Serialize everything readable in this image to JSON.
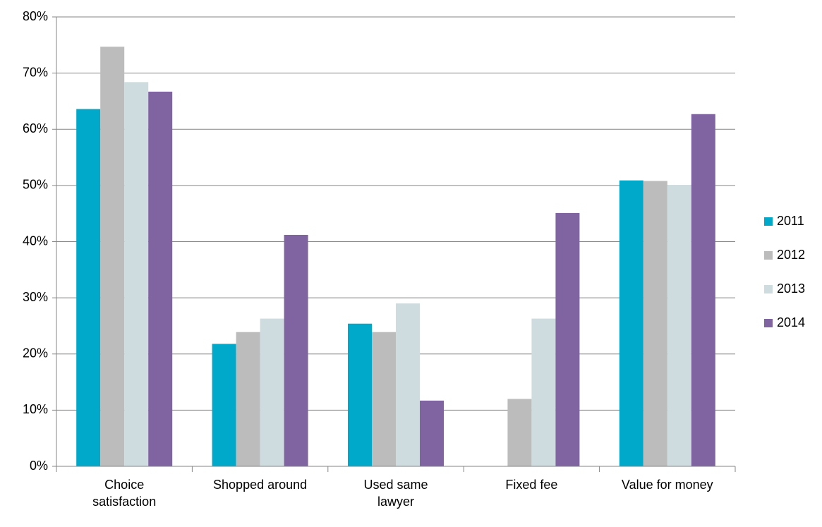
{
  "chart_data": {
    "type": "bar",
    "categories": [
      "Choice satisfaction",
      "Shopped around",
      "Used same lawyer",
      "Fixed fee",
      "Value for money"
    ],
    "series": [
      {
        "name": "2011",
        "color": "#00a9c9",
        "values": [
          63.6,
          21.8,
          25.4,
          null,
          50.9
        ]
      },
      {
        "name": "2012",
        "color": "#bcbcbc",
        "values": [
          74.7,
          23.9,
          23.9,
          12.0,
          50.8
        ]
      },
      {
        "name": "2013",
        "color": "#cfdcdf",
        "values": [
          68.4,
          26.3,
          29.0,
          26.3,
          50.1
        ]
      },
      {
        "name": "2014",
        "color": "#8064a2",
        "values": [
          66.7,
          41.2,
          11.7,
          45.1,
          62.7
        ]
      }
    ],
    "ylim": [
      0,
      80
    ],
    "yticks": [
      {
        "value": 0,
        "label": "0%"
      },
      {
        "value": 10,
        "label": "10%"
      },
      {
        "value": 20,
        "label": "20%"
      },
      {
        "value": 30,
        "label": "30%"
      },
      {
        "value": 40,
        "label": "40%"
      },
      {
        "value": 50,
        "label": "50%"
      },
      {
        "value": 60,
        "label": "60%"
      },
      {
        "value": 70,
        "label": "70%"
      },
      {
        "value": 80,
        "label": "80%"
      }
    ],
    "grid": true,
    "legend": "right"
  }
}
